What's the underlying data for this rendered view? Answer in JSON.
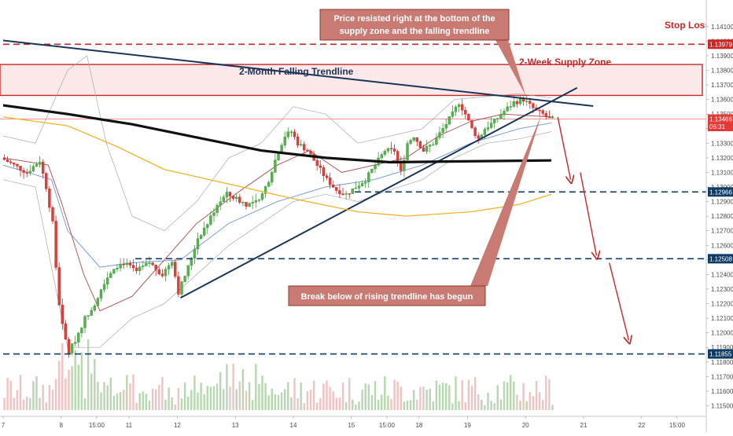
{
  "chart_data": {
    "type": "candlestick",
    "title": "",
    "ylim": [
      1.11427,
      1.1425
    ],
    "y_ticks": [
      "1.14100",
      "1.14000",
      "1.13900",
      "1.13800",
      "1.13700",
      "1.13600",
      "1.13500",
      "1.13400",
      "1.13300",
      "1.13200",
      "1.13100",
      "1.13000",
      "1.12900",
      "1.12800",
      "1.12700",
      "1.12600",
      "1.12500",
      "1.12400",
      "1.12300",
      "1.12200",
      "1.12100",
      "1.12000",
      "1.11900",
      "1.11800",
      "1.11700",
      "1.11600",
      "1.11500"
    ],
    "x_ticks": [
      {
        "label": "7",
        "t": 0
      },
      {
        "label": "8",
        "t": 18
      },
      {
        "label": "15:00",
        "t": 29
      },
      {
        "label": "11",
        "t": 39
      },
      {
        "label": "12",
        "t": 54
      },
      {
        "label": "13",
        "t": 72
      },
      {
        "label": "14",
        "t": 90
      },
      {
        "label": "15",
        "t": 108
      },
      {
        "label": "15:00",
        "t": 119
      },
      {
        "label": "18",
        "t": 129
      },
      {
        "label": "19",
        "t": 144
      },
      {
        "label": "20",
        "t": 162
      },
      {
        "label": "21",
        "t": 180
      },
      {
        "label": "22",
        "t": 198
      },
      {
        "label": "15:00",
        "t": 209
      }
    ],
    "price_badges": [
      {
        "label": "1.13979",
        "value": 1.13979,
        "color": "#c62828"
      },
      {
        "label": "1.13466",
        "value": 1.13466,
        "color": "#e53935"
      },
      {
        "label": "06:31",
        "value": 1.13415,
        "color": "#e53935"
      },
      {
        "label": "1.12966",
        "value": 1.12966,
        "color": "#0d3b66"
      },
      {
        "label": "1.12508",
        "value": 1.12508,
        "color": "#0d3b66"
      },
      {
        "label": "1.11855",
        "value": 1.11855,
        "color": "#0d3b66"
      }
    ],
    "levels": [
      {
        "name": "stop-loss",
        "value": 1.13979,
        "color": "#c62828",
        "t_start": 0
      },
      {
        "name": "support-1",
        "value": 1.12966,
        "color": "#0d3b66",
        "t_start": 109
      },
      {
        "name": "support-2",
        "value": 1.12508,
        "color": "#0d3b66",
        "t_start": 41
      },
      {
        "name": "support-3",
        "value": 1.11855,
        "color": "#0d3b66",
        "t_start": 0
      }
    ],
    "supply_zone": {
      "top": 1.1384,
      "bottom": 1.13628,
      "label": "2-Week Supply Zone"
    },
    "trendlines": [
      {
        "name": "falling-trendline",
        "t1": 0,
        "v1": 1.14005,
        "t2": 183,
        "v2": 1.13555,
        "color": "#1a3558",
        "width": 2
      },
      {
        "name": "rising-trendline",
        "t1": 55,
        "v1": 1.1224,
        "t2": 178,
        "v2": 1.1368,
        "color": "#1a3558",
        "width": 2
      },
      {
        "name": "ma-200",
        "color": "#111111",
        "width": 3.2,
        "points": [
          [
            0,
            1.1356
          ],
          [
            20,
            1.135
          ],
          [
            40,
            1.1343
          ],
          [
            60,
            1.1334
          ],
          [
            80,
            1.1325
          ],
          [
            100,
            1.132
          ],
          [
            120,
            1.1317
          ],
          [
            140,
            1.13175
          ],
          [
            160,
            1.1318
          ],
          [
            170,
            1.13182
          ]
        ]
      },
      {
        "name": "ma-100",
        "color": "#f0b429",
        "width": 1.3,
        "points": [
          [
            0,
            1.1348
          ],
          [
            20,
            1.1342
          ],
          [
            35,
            1.1328
          ],
          [
            50,
            1.1312
          ],
          [
            70,
            1.1302
          ],
          [
            90,
            1.1292
          ],
          [
            110,
            1.1283
          ],
          [
            125,
            1.128
          ],
          [
            145,
            1.1283
          ],
          [
            160,
            1.1288
          ],
          [
            170,
            1.1295
          ]
        ]
      }
    ],
    "bollinger": {
      "upper": [
        [
          0,
          1.1335
        ],
        [
          10,
          1.133
        ],
        [
          20,
          1.138
        ],
        [
          26,
          1.139
        ],
        [
          32,
          1.133
        ],
        [
          40,
          1.128
        ],
        [
          50,
          1.127
        ],
        [
          60,
          1.129
        ],
        [
          70,
          1.132
        ],
        [
          80,
          1.133
        ],
        [
          90,
          1.1355
        ],
        [
          100,
          1.135
        ],
        [
          110,
          1.133
        ],
        [
          120,
          1.1335
        ],
        [
          130,
          1.134
        ],
        [
          140,
          1.136
        ],
        [
          150,
          1.1362
        ],
        [
          160,
          1.1364
        ],
        [
          170,
          1.1361
        ]
      ],
      "lower": [
        [
          0,
          1.1305
        ],
        [
          10,
          1.13
        ],
        [
          20,
          1.119
        ],
        [
          30,
          1.119
        ],
        [
          40,
          1.121
        ],
        [
          50,
          1.122
        ],
        [
          60,
          1.124
        ],
        [
          70,
          1.126
        ],
        [
          80,
          1.1275
        ],
        [
          90,
          1.129
        ],
        [
          100,
          1.1295
        ],
        [
          110,
          1.129
        ],
        [
          120,
          1.1298
        ],
        [
          130,
          1.1305
        ],
        [
          140,
          1.132
        ],
        [
          150,
          1.133
        ],
        [
          160,
          1.1333
        ],
        [
          170,
          1.1338
        ]
      ],
      "middle": [
        [
          0,
          1.132
        ],
        [
          12,
          1.1315
        ],
        [
          18,
          1.127
        ],
        [
          28,
          1.125
        ],
        [
          40,
          1.125
        ],
        [
          55,
          1.126
        ],
        [
          70,
          1.1285
        ],
        [
          85,
          1.13
        ],
        [
          100,
          1.131
        ],
        [
          115,
          1.131
        ],
        [
          130,
          1.132
        ],
        [
          145,
          1.1335
        ],
        [
          160,
          1.1345
        ],
        [
          170,
          1.1348
        ]
      ]
    },
    "ma_red": [
      [
        0,
        1.132
      ],
      [
        14,
        1.1315
      ],
      [
        18,
        1.129
      ],
      [
        25,
        1.124
      ],
      [
        30,
        1.1215
      ],
      [
        40,
        1.1225
      ],
      [
        50,
        1.125
      ],
      [
        60,
        1.1275
      ],
      [
        72,
        1.1295
      ],
      [
        85,
        1.1315
      ],
      [
        95,
        1.1325
      ],
      [
        105,
        1.131
      ],
      [
        115,
        1.1315
      ],
      [
        125,
        1.132
      ],
      [
        135,
        1.1335
      ],
      [
        145,
        1.1345
      ],
      [
        155,
        1.135
      ],
      [
        170,
        1.1348
      ]
    ],
    "ma_blue": [
      [
        0,
        1.1315
      ],
      [
        15,
        1.1305
      ],
      [
        20,
        1.127
      ],
      [
        30,
        1.1245
      ],
      [
        40,
        1.1248
      ],
      [
        55,
        1.125
      ],
      [
        70,
        1.1275
      ],
      [
        85,
        1.129
      ],
      [
        100,
        1.13
      ],
      [
        115,
        1.1305
      ],
      [
        130,
        1.1315
      ],
      [
        145,
        1.133
      ],
      [
        160,
        1.134
      ],
      [
        170,
        1.1344
      ]
    ],
    "price_path": [
      [
        0,
        1.132
      ],
      [
        4,
        1.1315
      ],
      [
        8,
        1.131
      ],
      [
        12,
        1.1318
      ],
      [
        14,
        1.13
      ],
      [
        16,
        1.1275
      ],
      [
        17,
        1.1245
      ],
      [
        18,
        1.122
      ],
      [
        19,
        1.1205
      ],
      [
        20,
        1.1195
      ],
      [
        21,
        1.1187
      ],
      [
        23,
        1.1195
      ],
      [
        26,
        1.121
      ],
      [
        29,
        1.122
      ],
      [
        32,
        1.1235
      ],
      [
        35,
        1.1245
      ],
      [
        38,
        1.1248
      ],
      [
        42,
        1.1242
      ],
      [
        46,
        1.1248
      ],
      [
        50,
        1.124
      ],
      [
        53,
        1.125
      ],
      [
        55,
        1.1228
      ],
      [
        58,
        1.1245
      ],
      [
        61,
        1.1265
      ],
      [
        64,
        1.1275
      ],
      [
        67,
        1.1288
      ],
      [
        70,
        1.1295
      ],
      [
        73,
        1.1292
      ],
      [
        76,
        1.1288
      ],
      [
        80,
        1.129
      ],
      [
        83,
        1.1305
      ],
      [
        86,
        1.1325
      ],
      [
        88,
        1.1335
      ],
      [
        90,
        1.1338
      ],
      [
        92,
        1.133
      ],
      [
        95,
        1.1325
      ],
      [
        98,
        1.1315
      ],
      [
        101,
        1.1305
      ],
      [
        104,
        1.1298
      ],
      [
        107,
        1.1295
      ],
      [
        110,
        1.13
      ],
      [
        113,
        1.1305
      ],
      [
        116,
        1.1315
      ],
      [
        119,
        1.1325
      ],
      [
        122,
        1.1325
      ],
      [
        124,
        1.131
      ],
      [
        126,
        1.133
      ],
      [
        128,
        1.1335
      ],
      [
        131,
        1.1325
      ],
      [
        134,
        1.133
      ],
      [
        137,
        1.134
      ],
      [
        140,
        1.135
      ],
      [
        142,
        1.1358
      ],
      [
        144,
        1.135
      ],
      [
        146,
        1.134
      ],
      [
        148,
        1.1333
      ],
      [
        150,
        1.134
      ],
      [
        153,
        1.1345
      ],
      [
        156,
        1.1352
      ],
      [
        159,
        1.1358
      ],
      [
        162,
        1.136
      ],
      [
        164,
        1.1356
      ],
      [
        166,
        1.1352
      ],
      [
        168,
        1.135
      ],
      [
        170,
        1.13466
      ]
    ],
    "projection_arrows": [
      [
        [
          172,
          1.1348
        ],
        [
          176,
          1.1305
        ]
      ],
      [
        [
          179,
          1.131
        ],
        [
          184,
          1.1253
        ]
      ],
      [
        [
          188,
          1.1248
        ],
        [
          194,
          1.1195
        ]
      ]
    ],
    "annotations": [
      {
        "name": "annotation-top",
        "text_lines": [
          "Price resisted right at the bottom of the",
          "supply zone and the falling trendline"
        ],
        "color": "#c0605a"
      },
      {
        "name": "annotation-bottom",
        "text_lines": [
          "Break below of rising trendline has begun"
        ],
        "color": "#c0605a"
      }
    ],
    "labels": {
      "stop_loss": "Stop Loss",
      "falling_trendline": "2-Month Falling Trendline",
      "supply_zone": "2-Week Supply Zone"
    },
    "grid": false,
    "volume_colors": {
      "up": "#b7d7b0",
      "down": "#eec3c3"
    }
  }
}
